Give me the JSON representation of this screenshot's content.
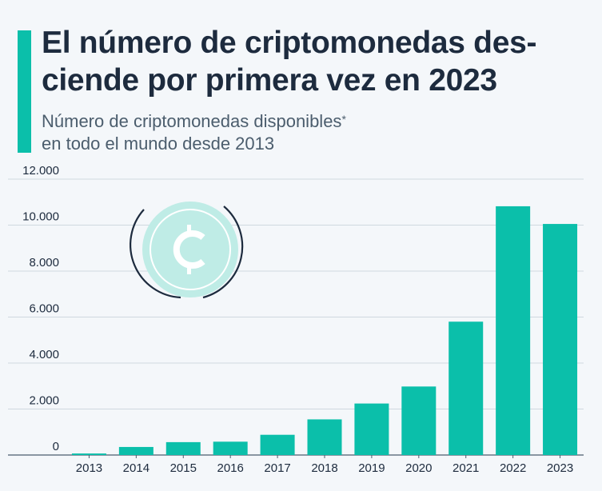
{
  "header": {
    "title_line1": "El número de criptomonedas des-",
    "title_line2": "ciende por primera vez en 2023",
    "subtitle_line1": "Número de criptomonedas disponibles",
    "subtitle_mark": "*",
    "subtitle_line2": "en todo el mundo desde 2013"
  },
  "colors": {
    "accent": "#0bbfaa",
    "bar": "#0bbfaa",
    "title": "#1d2b3e",
    "icon_fill": "#bfece6"
  },
  "icon": {
    "name": "cent-coin-icon"
  },
  "chart_data": {
    "type": "bar",
    "title": "",
    "xlabel": "",
    "ylabel": "",
    "categories": [
      "2013",
      "2014",
      "2015",
      "2016",
      "2017",
      "2018",
      "2019",
      "2020",
      "2021",
      "2022",
      "2023"
    ],
    "values": [
      66,
      350,
      560,
      580,
      880,
      1550,
      2240,
      2980,
      5800,
      10820,
      10050
    ],
    "ylim": [
      0,
      12000
    ],
    "yticks": [
      0,
      2000,
      4000,
      6000,
      8000,
      10000,
      12000
    ],
    "ytick_labels": [
      "0",
      "2.000",
      "4.000",
      "6.000",
      "8.000",
      "10.000",
      "12.000"
    ],
    "grid": true,
    "legend": "none"
  }
}
